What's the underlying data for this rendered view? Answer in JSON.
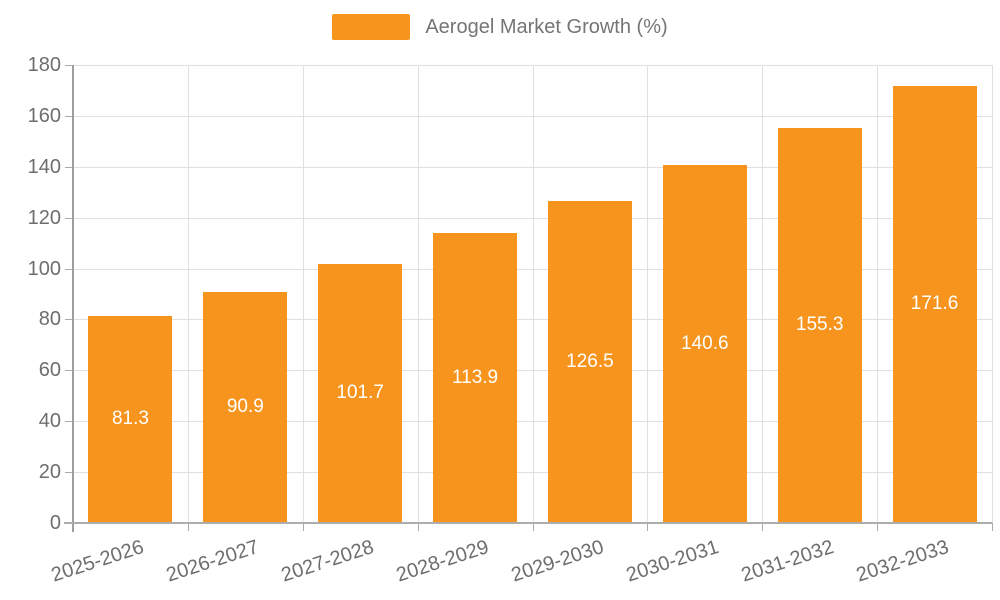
{
  "legend": {
    "label": "Aerogel Market Growth (%)"
  },
  "colors": {
    "bar": "#F7941E",
    "axis_text": "#6E6E6E",
    "legend_text": "#757575",
    "grid": "#E0E0E0",
    "axis_line": "#ADADAD",
    "value_label": "#FFFFFF"
  },
  "chart_data": {
    "type": "bar",
    "title": "",
    "legend_entries": [
      "Aerogel Market Growth (%)"
    ],
    "legend_position": "top-center",
    "categories": [
      "2025-2026",
      "2026-2027",
      "2027-2028",
      "2028-2029",
      "2029-2030",
      "2030-2031",
      "2031-2032",
      "2032-2033"
    ],
    "values": [
      81.3,
      90.9,
      101.7,
      113.9,
      126.5,
      140.6,
      155.3,
      171.6
    ],
    "xlabel": "",
    "ylabel": "",
    "ylim": [
      0,
      180
    ],
    "ytick_step": 20,
    "yticks": [
      0,
      20,
      40,
      60,
      80,
      100,
      120,
      140,
      160,
      180
    ],
    "grid": true,
    "value_labels": "inside-center"
  }
}
